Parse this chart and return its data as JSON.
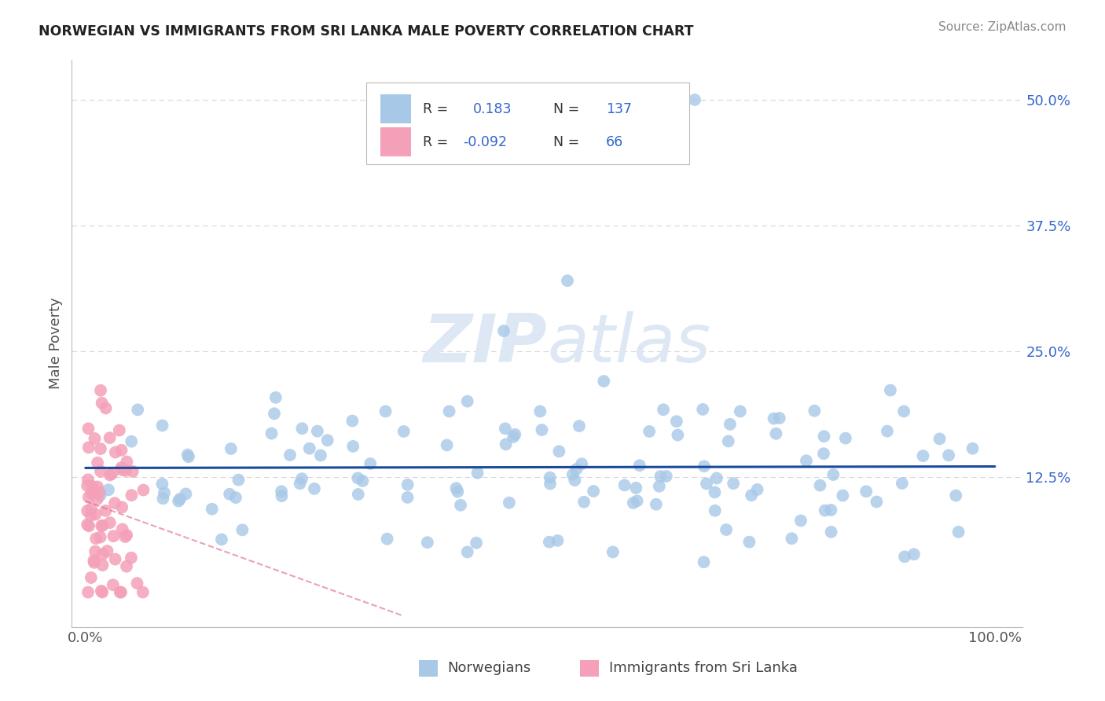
{
  "title": "NORWEGIAN VS IMMIGRANTS FROM SRI LANKA MALE POVERTY CORRELATION CHART",
  "source": "Source: ZipAtlas.com",
  "ylabel": "Male Poverty",
  "r_norwegian": 0.183,
  "n_norwegian": 137,
  "r_srilanka": -0.092,
  "n_srilanka": 66,
  "blue_color": "#a8c8e8",
  "pink_color": "#f4a0b8",
  "blue_line_color": "#1a4a9a",
  "pink_line_color": "#e07090",
  "legend_r_color": "#3366cc",
  "title_color": "#222222",
  "watermark_color": "#dde8f4",
  "background_color": "#ffffff",
  "grid_color": "#cccccc",
  "seed": 99
}
